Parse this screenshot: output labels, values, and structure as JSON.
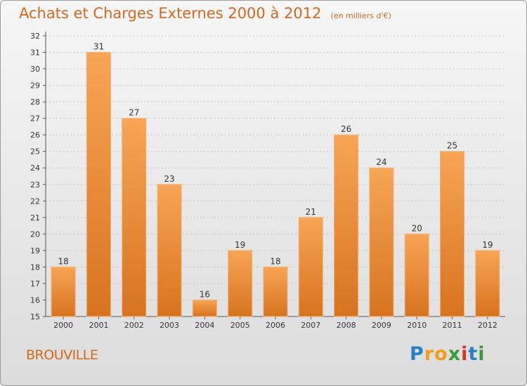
{
  "chart_data": {
    "type": "bar",
    "title": "Achats et Charges Externes 2000 à 2012",
    "subtitle": "(en milliers d'€)",
    "categories": [
      "2000",
      "2001",
      "2002",
      "2003",
      "2004",
      "2005",
      "2006",
      "2007",
      "2008",
      "2009",
      "2010",
      "2011",
      "2012"
    ],
    "values": [
      18,
      31,
      27,
      23,
      16,
      19,
      18,
      21,
      26,
      24,
      20,
      25,
      19
    ],
    "ylim": [
      15,
      32
    ],
    "yticks": [
      15,
      16,
      17,
      18,
      19,
      20,
      21,
      22,
      23,
      24,
      25,
      26,
      27,
      28,
      29,
      30,
      31,
      32
    ],
    "grid": true,
    "bar_color": "#f0923a",
    "bar_color_dark": "#d2691e",
    "xlabel": "",
    "ylabel": ""
  },
  "footer": {
    "commune": "BROUVILLE",
    "logo": "Proxiti"
  }
}
